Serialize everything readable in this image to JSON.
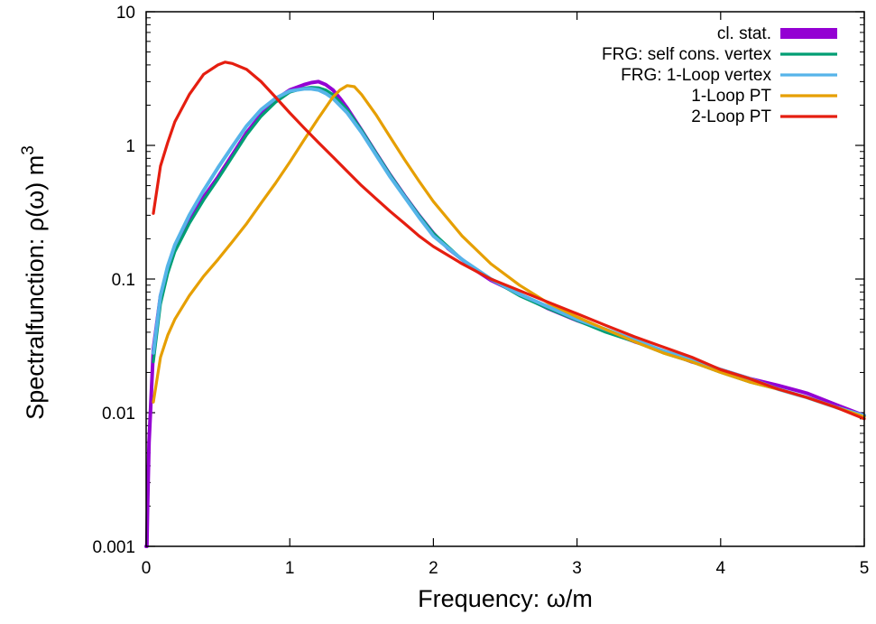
{
  "chart_data": {
    "type": "line",
    "xlabel": "Frequency: ω/m",
    "ylabel": "Spectralfunction: ρ(ω) m",
    "ylabel_sup": "3",
    "xlim": [
      0,
      5
    ],
    "ylim": [
      0.001,
      10
    ],
    "yscale": "log",
    "grid": false,
    "legend_position": "top-right",
    "xticks": [
      {
        "value": 0,
        "label": "0"
      },
      {
        "value": 1,
        "label": "1"
      },
      {
        "value": 2,
        "label": "2"
      },
      {
        "value": 3,
        "label": "3"
      },
      {
        "value": 4,
        "label": "4"
      },
      {
        "value": 5,
        "label": "5"
      }
    ],
    "yticks": [
      {
        "value": 0.001,
        "label": "0.001"
      },
      {
        "value": 0.01,
        "label": "0.01"
      },
      {
        "value": 0.1,
        "label": "0.1"
      },
      {
        "value": 1,
        "label": "1"
      },
      {
        "value": 10,
        "label": "10"
      }
    ],
    "series": [
      {
        "name": "cl. stat.",
        "color": "#9400d3",
        "style": "band",
        "x": [
          0.0,
          0.005,
          0.01,
          0.02,
          0.05,
          0.1,
          0.15,
          0.2,
          0.3,
          0.4,
          0.5,
          0.6,
          0.7,
          0.8,
          0.9,
          1.0,
          1.1,
          1.15,
          1.2,
          1.25,
          1.3,
          1.35,
          1.4,
          1.5,
          1.6,
          1.7,
          1.8,
          1.9,
          2.0,
          2.1,
          2.2,
          2.3,
          2.4,
          2.5,
          2.6,
          2.8,
          3.0,
          3.2,
          3.4,
          3.6,
          3.8,
          4.0,
          4.2,
          4.4,
          4.6,
          4.8,
          5.0
        ],
        "y": [
          0.001,
          0.001,
          0.002,
          0.006,
          0.03,
          0.075,
          0.12,
          0.17,
          0.27,
          0.41,
          0.58,
          0.85,
          1.25,
          1.7,
          2.2,
          2.6,
          2.85,
          2.95,
          3.0,
          2.85,
          2.6,
          2.25,
          1.9,
          1.3,
          0.88,
          0.6,
          0.42,
          0.3,
          0.22,
          0.17,
          0.14,
          0.115,
          0.098,
          0.087,
          0.077,
          0.06,
          0.049,
          0.041,
          0.034,
          0.029,
          0.024,
          0.021,
          0.018,
          0.016,
          0.014,
          0.0115,
          0.0095
        ]
      },
      {
        "name": "FRG: self cons. vertex",
        "color": "#009e73",
        "x": [
          0.05,
          0.1,
          0.15,
          0.2,
          0.3,
          0.4,
          0.5,
          0.6,
          0.7,
          0.8,
          0.9,
          1.0,
          1.1,
          1.15,
          1.2,
          1.25,
          1.3,
          1.4,
          1.5,
          1.6,
          1.7,
          1.8,
          1.9,
          2.0,
          2.2,
          2.4,
          2.6,
          2.8,
          3.0,
          3.2,
          3.4,
          3.6,
          3.8,
          4.0,
          4.2,
          4.4,
          4.6,
          4.8,
          5.0
        ],
        "y": [
          0.024,
          0.065,
          0.11,
          0.16,
          0.26,
          0.39,
          0.56,
          0.82,
          1.2,
          1.65,
          2.1,
          2.5,
          2.68,
          2.72,
          2.7,
          2.6,
          2.4,
          1.85,
          1.3,
          0.88,
          0.6,
          0.42,
          0.3,
          0.22,
          0.14,
          0.1,
          0.075,
          0.06,
          0.049,
          0.04,
          0.034,
          0.028,
          0.024,
          0.02,
          0.017,
          0.015,
          0.013,
          0.011,
          0.0095
        ]
      },
      {
        "name": "FRG: 1-Loop vertex",
        "color": "#56b4e9",
        "x": [
          0.05,
          0.1,
          0.15,
          0.2,
          0.3,
          0.4,
          0.5,
          0.6,
          0.7,
          0.8,
          0.9,
          1.0,
          1.1,
          1.15,
          1.2,
          1.25,
          1.3,
          1.4,
          1.5,
          1.6,
          1.7,
          1.8,
          1.9,
          2.0,
          2.2,
          2.4,
          2.6,
          2.8,
          3.0,
          3.2,
          3.4,
          3.6,
          3.8,
          4.0,
          4.2,
          4.4,
          4.6,
          4.8,
          5.0
        ],
        "y": [
          0.028,
          0.075,
          0.125,
          0.18,
          0.3,
          0.46,
          0.68,
          0.98,
          1.4,
          1.85,
          2.25,
          2.55,
          2.65,
          2.65,
          2.6,
          2.45,
          2.25,
          1.75,
          1.25,
          0.85,
          0.58,
          0.41,
          0.29,
          0.21,
          0.14,
          0.1,
          0.077,
          0.062,
          0.05,
          0.042,
          0.035,
          0.029,
          0.025,
          0.021,
          0.018,
          0.015,
          0.013,
          0.011,
          0.0095
        ]
      },
      {
        "name": "1-Loop PT",
        "color": "#e69f00",
        "x": [
          0.05,
          0.1,
          0.15,
          0.2,
          0.3,
          0.4,
          0.5,
          0.6,
          0.7,
          0.8,
          0.9,
          1.0,
          1.1,
          1.2,
          1.3,
          1.35,
          1.4,
          1.45,
          1.5,
          1.6,
          1.7,
          1.8,
          1.9,
          2.0,
          2.2,
          2.4,
          2.6,
          2.8,
          3.0,
          3.2,
          3.4,
          3.6,
          3.8,
          4.0,
          4.2,
          4.4,
          4.6,
          4.8,
          5.0
        ],
        "y": [
          0.012,
          0.026,
          0.038,
          0.05,
          0.075,
          0.105,
          0.14,
          0.19,
          0.26,
          0.37,
          0.52,
          0.75,
          1.1,
          1.6,
          2.3,
          2.6,
          2.8,
          2.75,
          2.4,
          1.7,
          1.15,
          0.78,
          0.54,
          0.38,
          0.21,
          0.13,
          0.09,
          0.066,
          0.052,
          0.042,
          0.034,
          0.028,
          0.024,
          0.02,
          0.017,
          0.015,
          0.013,
          0.011,
          0.0093
        ]
      },
      {
        "name": "2-Loop PT",
        "color": "#e51e10",
        "x": [
          0.05,
          0.1,
          0.15,
          0.2,
          0.3,
          0.4,
          0.5,
          0.55,
          0.6,
          0.7,
          0.8,
          0.9,
          1.0,
          1.1,
          1.2,
          1.3,
          1.4,
          1.5,
          1.6,
          1.7,
          1.8,
          1.9,
          2.0,
          2.2,
          2.4,
          2.6,
          2.8,
          3.0,
          3.2,
          3.4,
          3.6,
          3.8,
          4.0,
          4.2,
          4.4,
          4.6,
          4.8,
          5.0
        ],
        "y": [
          0.31,
          0.7,
          1.05,
          1.5,
          2.4,
          3.4,
          4.0,
          4.2,
          4.1,
          3.7,
          3.0,
          2.3,
          1.75,
          1.35,
          1.05,
          0.82,
          0.64,
          0.5,
          0.4,
          0.32,
          0.26,
          0.21,
          0.175,
          0.13,
          0.1,
          0.082,
          0.067,
          0.055,
          0.045,
          0.037,
          0.031,
          0.026,
          0.021,
          0.018,
          0.015,
          0.013,
          0.011,
          0.009
        ]
      }
    ]
  }
}
